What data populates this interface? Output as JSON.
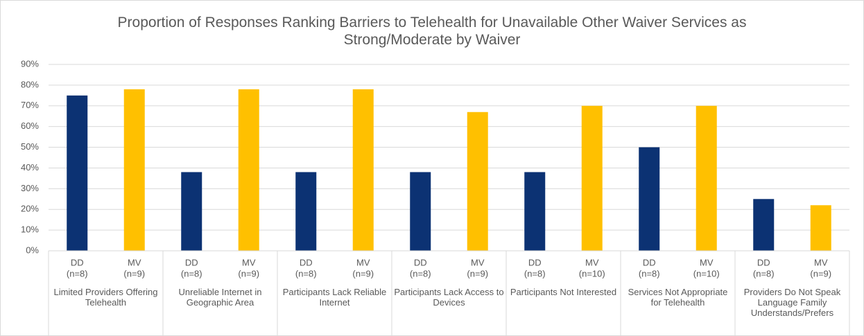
{
  "chart_data": {
    "type": "bar",
    "title": "Proportion of Responses Ranking Barriers to Telehealth for Unavailable Other Waiver Services as Strong/Moderate by Waiver",
    "categories": [
      "Limited Providers Offering Telehealth",
      "Unreliable Internet in Geographic Area",
      "Participants Lack Reliable Internet",
      "Participants Lack Access to Devices",
      "Participants Not Interested",
      "Services Not Appropriate for Telehealth",
      "Providers Do Not Speak Language Family Understands/Prefers"
    ],
    "series": [
      {
        "name": "DD",
        "color": "#0c3273",
        "values": [
          75,
          38,
          38,
          38,
          38,
          50,
          25
        ],
        "n_labels": [
          "(n=8)",
          "(n=8)",
          "(n=8)",
          "(n=8)",
          "(n=8)",
          "(n=8)",
          "(n=8)"
        ]
      },
      {
        "name": "MV",
        "color": "#ffc000",
        "values": [
          78,
          78,
          78,
          67,
          70,
          70,
          22
        ],
        "n_labels": [
          "(n=9)",
          "(n=9)",
          "(n=9)",
          "(n=9)",
          "(n=10)",
          "(n=10)",
          "(n=9)"
        ]
      }
    ],
    "ylim": [
      0,
      90
    ],
    "yticks": [
      {
        "value": 0,
        "label": "0%"
      },
      {
        "value": 10,
        "label": "10%"
      },
      {
        "value": 20,
        "label": "20%"
      },
      {
        "value": 30,
        "label": "30%"
      },
      {
        "value": 40,
        "label": "40%"
      },
      {
        "value": 50,
        "label": "50%"
      },
      {
        "value": 60,
        "label": "60%"
      },
      {
        "value": 70,
        "label": "70%"
      },
      {
        "value": 80,
        "label": "80%"
      },
      {
        "value": 90,
        "label": "90%"
      }
    ],
    "grid": true
  }
}
